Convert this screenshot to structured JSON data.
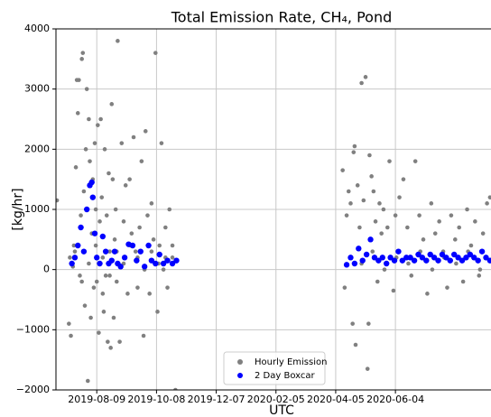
{
  "chart_data": {
    "type": "scatter",
    "title": "Total Emission Rate, CH₄, Pond",
    "x_label": "UTC",
    "y_label": "[kg/hr]",
    "xlim": [
      "2019-06-29",
      "2020-09-08"
    ],
    "xticks": [
      "2019-08-09",
      "2019-10-08",
      "2019-12-07",
      "2020-02-05",
      "2020-04-05",
      "2020-06-04"
    ],
    "ylim": [
      -2000,
      4000
    ],
    "yticks": [
      {
        "value": -2000,
        "label": "−2000"
      },
      {
        "value": -1000,
        "label": "−1000"
      },
      0,
      1000,
      2000,
      3000,
      4000
    ],
    "grid": true,
    "legend": "lower center",
    "series": [
      {
        "name": "Hourly Emission",
        "color": "#808080",
        "x": [
          "2019-06-30",
          "2019-07-12",
          "2019-07-13",
          "2019-07-14",
          "2019-07-16",
          "2019-07-17",
          "2019-07-18",
          "2019-07-19",
          "2019-07-20",
          "2019-07-21",
          "2019-07-22",
          "2019-07-23",
          "2019-07-24",
          "2019-07-25",
          "2019-07-25",
          "2019-07-26",
          "2019-07-27",
          "2019-07-28",
          "2019-07-29",
          "2019-07-30",
          "2019-07-31",
          "2019-08-01",
          "2019-08-01",
          "2019-08-02",
          "2019-08-03",
          "2019-08-04",
          "2019-08-05",
          "2019-08-06",
          "2019-08-07",
          "2019-08-08",
          "2019-08-08",
          "2019-08-09",
          "2019-08-10",
          "2019-08-11",
          "2019-08-12",
          "2019-08-13",
          "2019-08-14",
          "2019-08-15",
          "2019-08-15",
          "2019-08-16",
          "2019-08-17",
          "2019-08-18",
          "2019-08-19",
          "2019-08-20",
          "2019-08-21",
          "2019-08-22",
          "2019-08-22",
          "2019-08-23",
          "2019-08-24",
          "2019-08-25",
          "2019-08-26",
          "2019-08-27",
          "2019-08-28",
          "2019-08-29",
          "2019-08-29",
          "2019-08-30",
          "2019-09-01",
          "2019-09-03",
          "2019-09-05",
          "2019-09-05",
          "2019-09-07",
          "2019-09-09",
          "2019-09-11",
          "2019-09-12",
          "2019-09-13",
          "2019-09-15",
          "2019-09-17",
          "2019-09-19",
          "2019-09-19",
          "2019-09-21",
          "2019-09-23",
          "2019-09-25",
          "2019-09-26",
          "2019-09-27",
          "2019-09-29",
          "2019-10-01",
          "2019-10-03",
          "2019-10-03",
          "2019-10-05",
          "2019-10-07",
          "2019-10-09",
          "2019-10-10",
          "2019-10-11",
          "2019-10-13",
          "2019-10-15",
          "2019-10-17",
          "2019-10-17",
          "2019-10-19",
          "2019-10-21",
          "2019-10-24",
          "2019-10-24",
          "2019-10-27",
          "2020-04-12",
          "2020-04-14",
          "2020-04-16",
          "2020-04-18",
          "2020-04-20",
          "2020-04-20",
          "2020-04-22",
          "2020-04-23",
          "2020-04-24",
          "2020-04-25",
          "2020-04-27",
          "2020-04-29",
          "2020-05-01",
          "2020-05-01",
          "2020-05-03",
          "2020-05-05",
          "2020-05-07",
          "2020-05-08",
          "2020-05-09",
          "2020-05-11",
          "2020-05-12",
          "2020-05-13",
          "2020-05-15",
          "2020-05-17",
          "2020-05-19",
          "2020-05-21",
          "2020-05-23",
          "2020-05-24",
          "2020-05-27",
          "2020-05-29",
          "2020-06-02",
          "2020-06-04",
          "2020-06-05",
          "2020-06-08",
          "2020-06-12",
          "2020-06-16",
          "2020-06-17",
          "2020-06-20",
          "2020-06-24",
          "2020-06-28",
          "2020-06-29",
          "2020-07-02",
          "2020-07-06",
          "2020-07-10",
          "2020-07-11",
          "2020-07-14",
          "2020-07-18",
          "2020-07-22",
          "2020-07-23",
          "2020-07-26",
          "2020-07-30",
          "2020-08-03",
          "2020-08-04",
          "2020-08-07",
          "2020-08-11",
          "2020-08-15",
          "2020-08-16",
          "2020-08-19",
          "2020-08-23",
          "2020-08-27",
          "2020-08-28",
          "2020-08-31",
          "2020-09-04",
          "2020-09-07"
        ],
        "values": [
          1150,
          -900,
          200,
          -1100,
          50,
          400,
          300,
          1700,
          3150,
          2600,
          3150,
          -100,
          900,
          3500,
          -200,
          3600,
          1300,
          -600,
          2000,
          3000,
          -1850,
          2500,
          100,
          1800,
          -800,
          600,
          1500,
          -300,
          2100,
          1000,
          400,
          -200,
          2400,
          -1050,
          800,
          2500,
          1200,
          -400,
          200,
          -700,
          2000,
          -100,
          900,
          -1200,
          1600,
          300,
          -100,
          -1300,
          2750,
          1500,
          -800,
          500,
          1000,
          -200,
          300,
          3800,
          -1200,
          2100,
          800,
          100,
          1400,
          -400,
          1500,
          400,
          600,
          2200,
          300,
          -300,
          200,
          700,
          1800,
          -1100,
          0,
          2300,
          900,
          -400,
          1100,
          300,
          500,
          3600,
          -700,
          100,
          400,
          2100,
          0,
          700,
          200,
          -300,
          1000,
          200,
          400,
          -2000,
          1650,
          -300,
          900,
          1300,
          1100,
          200,
          -900,
          1950,
          2050,
          -1250,
          1400,
          700,
          3100,
          100,
          1150,
          3200,
          -1650,
          -900,
          1900,
          1550,
          300,
          1300,
          800,
          -200,
          1100,
          600,
          1000,
          0,
          700,
          1800,
          -350,
          900,
          200,
          1200,
          1500,
          700,
          100,
          -100,
          1800,
          900,
          300,
          500,
          -400,
          1100,
          0,
          600,
          800,
          300,
          200,
          -300,
          900,
          500,
          100,
          700,
          -200,
          1000,
          300,
          400,
          800,
          -100,
          0,
          600,
          1100,
          1200
        ]
      },
      {
        "name": "2 Day Boxcar",
        "color": "#0000ff",
        "x": [
          "2019-07-15",
          "2019-07-18",
          "2019-07-21",
          "2019-07-24",
          "2019-07-27",
          "2019-07-30",
          "2019-08-02",
          "2019-08-04",
          "2019-08-05",
          "2019-08-07",
          "2019-08-09",
          "2019-08-12",
          "2019-08-15",
          "2019-08-18",
          "2019-08-21",
          "2019-08-24",
          "2019-08-27",
          "2019-08-30",
          "2019-09-02",
          "2019-09-06",
          "2019-09-10",
          "2019-09-14",
          "2019-09-18",
          "2019-09-22",
          "2019-09-26",
          "2019-09-30",
          "2019-10-03",
          "2019-10-07",
          "2019-10-11",
          "2019-10-15",
          "2019-10-19",
          "2019-10-24",
          "2019-10-28",
          "2020-04-16",
          "2020-04-20",
          "2020-04-24",
          "2020-04-28",
          "2020-05-02",
          "2020-05-06",
          "2020-05-10",
          "2020-05-14",
          "2020-05-18",
          "2020-05-22",
          "2020-05-26",
          "2020-05-30",
          "2020-06-03",
          "2020-06-07",
          "2020-06-11",
          "2020-06-15",
          "2020-06-19",
          "2020-06-23",
          "2020-06-27",
          "2020-07-01",
          "2020-07-05",
          "2020-07-09",
          "2020-07-13",
          "2020-07-17",
          "2020-07-21",
          "2020-07-25",
          "2020-07-29",
          "2020-08-02",
          "2020-08-06",
          "2020-08-10",
          "2020-08-14",
          "2020-08-18",
          "2020-08-22",
          "2020-08-26",
          "2020-08-30",
          "2020-09-03",
          "2020-09-07"
        ],
        "values": [
          100,
          200,
          400,
          700,
          300,
          1000,
          1400,
          1450,
          1200,
          600,
          200,
          100,
          550,
          300,
          100,
          150,
          300,
          100,
          50,
          200,
          420,
          400,
          150,
          300,
          50,
          400,
          150,
          100,
          250,
          100,
          150,
          100,
          150,
          80,
          200,
          100,
          350,
          150,
          250,
          500,
          200,
          150,
          200,
          100,
          200,
          150,
          300,
          150,
          200,
          200,
          150,
          250,
          200,
          150,
          250,
          200,
          150,
          250,
          200,
          150,
          250,
          200,
          150,
          200,
          250,
          200,
          150,
          300,
          200,
          150
        ]
      }
    ]
  }
}
